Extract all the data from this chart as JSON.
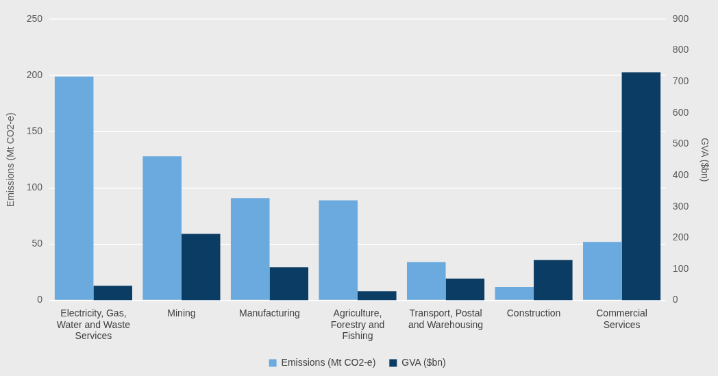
{
  "chart_data": {
    "type": "bar",
    "categories": [
      "Electricity, Gas, Water and Waste Services",
      "Mining",
      "Manufacturing",
      "Agriculture, Forestry and Fishing",
      "Transport, Postal and Warehousing",
      "Construction",
      "Commercial Services"
    ],
    "series": [
      {
        "name": "Emissions (Mt CO2-e)",
        "color": "#6aaade",
        "values": [
          199,
          128,
          91,
          89,
          34,
          12,
          52
        ]
      },
      {
        "name": "GVA ($bn)",
        "color": "#0b3c64",
        "axis": "y2",
        "values": [
          47,
          213,
          106,
          29,
          70,
          129,
          730
        ]
      }
    ],
    "ylabel": "Emissions (Mt CO2-e)",
    "y2label": "GVA ($bn)",
    "ylim": [
      0,
      250
    ],
    "yticks": [
      0,
      50,
      100,
      150,
      200,
      250
    ],
    "y2lim": [
      0,
      900
    ],
    "y2ticks": [
      0,
      100,
      200,
      300,
      400,
      500,
      600,
      700,
      800,
      900
    ],
    "grid": "y",
    "legend": "bottom"
  }
}
